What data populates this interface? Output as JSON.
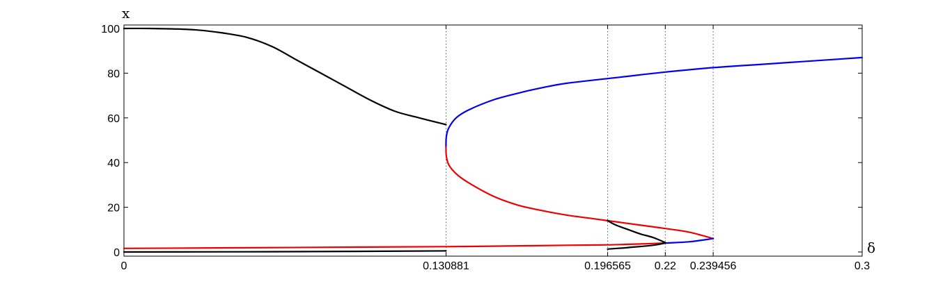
{
  "chart_data": {
    "type": "line",
    "title": "",
    "xlabel": "δ",
    "ylabel": "x",
    "xlim": [
      0,
      0.3
    ],
    "ylim": [
      -2,
      101
    ],
    "grid": false,
    "legend": "none",
    "x_ticks": [
      {
        "value": 0,
        "label": "0"
      },
      {
        "value": 0.130881,
        "label": "0.130881"
      },
      {
        "value": 0.196565,
        "label": "0.196565"
      },
      {
        "value": 0.22,
        "label": "0.22"
      },
      {
        "value": 0.239456,
        "label": "0.239456"
      },
      {
        "value": 0.3,
        "label": "0.3"
      }
    ],
    "y_ticks": [
      {
        "value": 0,
        "label": "0"
      },
      {
        "value": 20,
        "label": "20"
      },
      {
        "value": 40,
        "label": "40"
      },
      {
        "value": 60,
        "label": "60"
      },
      {
        "value": 80,
        "label": "80"
      },
      {
        "value": 100,
        "label": "100"
      }
    ],
    "vlines": [
      0.130881,
      0.196565,
      0.22,
      0.239456
    ],
    "colors": {
      "black": "#000000",
      "blue": "#0000ee",
      "red": "#ee0000",
      "vline": "#555555"
    },
    "series": [
      {
        "color": "black",
        "x": [
          0,
          0.01,
          0.02,
          0.03,
          0.04,
          0.05,
          0.06,
          0.07,
          0.08,
          0.09,
          0.1,
          0.11,
          0.12,
          0.130881
        ],
        "y": [
          100,
          100,
          99.8,
          99.3,
          98,
          96,
          92,
          86,
          80,
          74,
          68,
          63,
          60,
          57
        ]
      },
      {
        "color": "black",
        "x": [
          0,
          0.05,
          0.1,
          0.130881
        ],
        "y": [
          0,
          0.1,
          0.3,
          0.5
        ]
      },
      {
        "color": "blue",
        "x": [
          0.3,
          0.28,
          0.26,
          0.239456,
          0.22,
          0.2,
          0.18,
          0.17,
          0.16,
          0.15,
          0.14,
          0.135,
          0.132,
          0.131,
          0.130881
        ],
        "y": [
          87,
          85.5,
          84,
          82.5,
          80.5,
          78,
          75.5,
          73.5,
          71,
          68,
          63.5,
          60,
          55.5,
          51.5,
          47
        ]
      },
      {
        "color": "red",
        "x": [
          0.130881,
          0.131,
          0.132,
          0.135,
          0.14,
          0.15,
          0.16,
          0.17,
          0.18,
          0.19,
          0.196565,
          0.21,
          0.22,
          0.23,
          0.239456
        ],
        "y": [
          47,
          43,
          39,
          35,
          31,
          25,
          21,
          18.5,
          16.5,
          15,
          14,
          12,
          10.5,
          8.8,
          6
        ]
      },
      {
        "color": "red",
        "x": [
          0,
          0.05,
          0.1,
          0.130881,
          0.15,
          0.18,
          0.196565,
          0.21,
          0.22
        ],
        "y": [
          1.6,
          1.9,
          2.2,
          2.4,
          2.6,
          3,
          3.2,
          3.6,
          4
        ]
      },
      {
        "color": "blue",
        "x": [
          0.22,
          0.23,
          0.239456
        ],
        "y": [
          4,
          4.6,
          6
        ]
      },
      {
        "color": "black",
        "x": [
          0.196565,
          0.2,
          0.205,
          0.21,
          0.215,
          0.22
        ],
        "y": [
          14,
          12,
          10,
          8,
          6.5,
          4.2
        ]
      },
      {
        "color": "black",
        "x": [
          0.196565,
          0.205,
          0.215,
          0.22
        ],
        "y": [
          1.3,
          2,
          3,
          4
        ]
      }
    ]
  }
}
